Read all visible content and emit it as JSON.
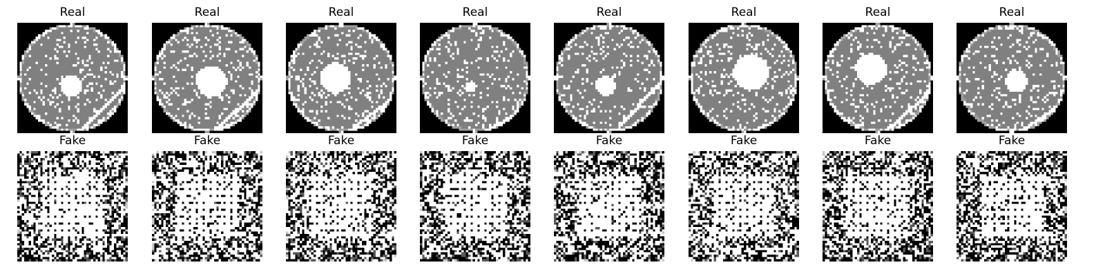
{
  "rows": [
    {
      "label": "Real",
      "kind": "real",
      "panels": [
        {
          "title": "Real",
          "seed": 11,
          "hole": 0.1,
          "hx": 0.49,
          "hy": 0.57,
          "scratch": 1
        },
        {
          "title": "Real",
          "seed": 23,
          "hole": 0.14,
          "hx": 0.54,
          "hy": 0.53,
          "scratch": 1
        },
        {
          "title": "Real",
          "seed": 37,
          "hole": 0.14,
          "hx": 0.45,
          "hy": 0.5,
          "scratch": 1
        },
        {
          "title": "Real",
          "seed": 41,
          "hole": 0.05,
          "hx": 0.46,
          "hy": 0.58,
          "scratch": 1
        },
        {
          "title": "Real",
          "seed": 53,
          "hole": 0.09,
          "hx": 0.47,
          "hy": 0.57,
          "scratch": 1
        },
        {
          "title": "Real",
          "seed": 67,
          "hole": 0.16,
          "hx": 0.57,
          "hy": 0.45,
          "scratch": 0
        },
        {
          "title": "Real",
          "seed": 79,
          "hole": 0.14,
          "hx": 0.44,
          "hy": 0.42,
          "scratch": 1
        },
        {
          "title": "Real",
          "seed": 83,
          "hole": 0.1,
          "hx": 0.54,
          "hy": 0.53,
          "scratch": 1
        }
      ]
    },
    {
      "label": "Fake",
      "kind": "fake",
      "panels": [
        {
          "title": "Fake",
          "seed": 101
        },
        {
          "title": "Fake",
          "seed": 113
        },
        {
          "title": "Fake",
          "seed": 127
        },
        {
          "title": "Fake",
          "seed": 131
        },
        {
          "title": "Fake",
          "seed": 149
        },
        {
          "title": "Fake",
          "seed": 157
        },
        {
          "title": "Fake",
          "seed": 163
        },
        {
          "title": "Fake",
          "seed": 179
        }
      ]
    }
  ]
}
